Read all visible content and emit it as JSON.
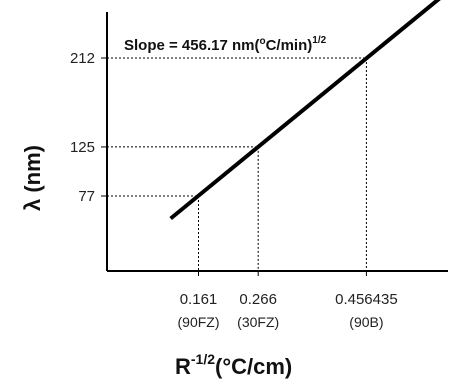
{
  "chart_data": {
    "type": "line",
    "title": "",
    "xlabel": "R",
    "xlabel_exponent": "-1/2",
    "xlabel_unit": "(°C/cm)",
    "ylabel": "λ (nm)",
    "annotation": {
      "prefix": "Slope = 456.17 nm(",
      "degree": "o",
      "unit": "C/min)",
      "exponent": "1/2"
    },
    "ylim": [
      0,
      250
    ],
    "xlim": [
      0,
      0.6
    ],
    "x_ticks": [
      {
        "value": 0.161,
        "label": "0.161",
        "sublabel": "(90FZ)"
      },
      {
        "value": 0.266,
        "label": "0.266",
        "sublabel": "(30FZ)"
      },
      {
        "value": 0.456435,
        "label": "0.456435",
        "sublabel": "(90B)"
      }
    ],
    "y_ticks": [
      {
        "value": 77,
        "label": "77"
      },
      {
        "value": 125,
        "label": "125"
      },
      {
        "value": 212,
        "label": "212"
      }
    ],
    "series": [
      {
        "x": [
          0.112,
          0.6
        ],
        "y": [
          55,
          277
        ],
        "color": "#000000"
      }
    ],
    "marked_points": [
      {
        "x": 0.161,
        "y": 77
      },
      {
        "x": 0.266,
        "y": 125
      },
      {
        "x": 0.456435,
        "y": 212
      }
    ],
    "grid": false
  }
}
